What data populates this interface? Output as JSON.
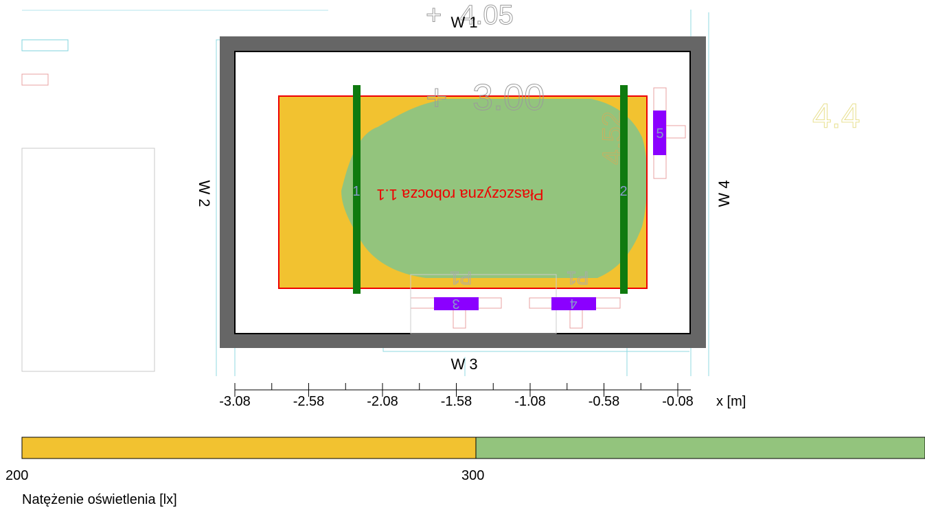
{
  "walls": {
    "w1": "W 1",
    "w2": "W 2",
    "w3": "W 3",
    "w4": "W 4"
  },
  "plane": {
    "label": "Płaszczyzna robocza 1.1"
  },
  "heights": {
    "top": "4.05",
    "center": "3.00",
    "side": "4.52",
    "right": "4.4"
  },
  "luminaires": {
    "l1": "1",
    "l2": "2",
    "l3": "3",
    "l4": "4",
    "l5": "5"
  },
  "markers": {
    "p1": "P1"
  },
  "axis": {
    "ticks": [
      "-3.08",
      "-2.58",
      "-2.08",
      "-1.58",
      "-1.08",
      "-0.58",
      "-0.08"
    ],
    "unit": "x [m]"
  },
  "legend": {
    "min": "200",
    "mid": "300",
    "title": "Natężenie oświetlenia [lx]",
    "colors": {
      "low": "#F2C230",
      "high": "#93C47D"
    }
  },
  "colors": {
    "wall": "#666666",
    "plane_border": "#EE0000",
    "luminaire_bar": "#0F7A0F",
    "luminaire_box": "#8B00FF",
    "guide": "#7FD3DD",
    "outline": "#E8A0A0"
  }
}
